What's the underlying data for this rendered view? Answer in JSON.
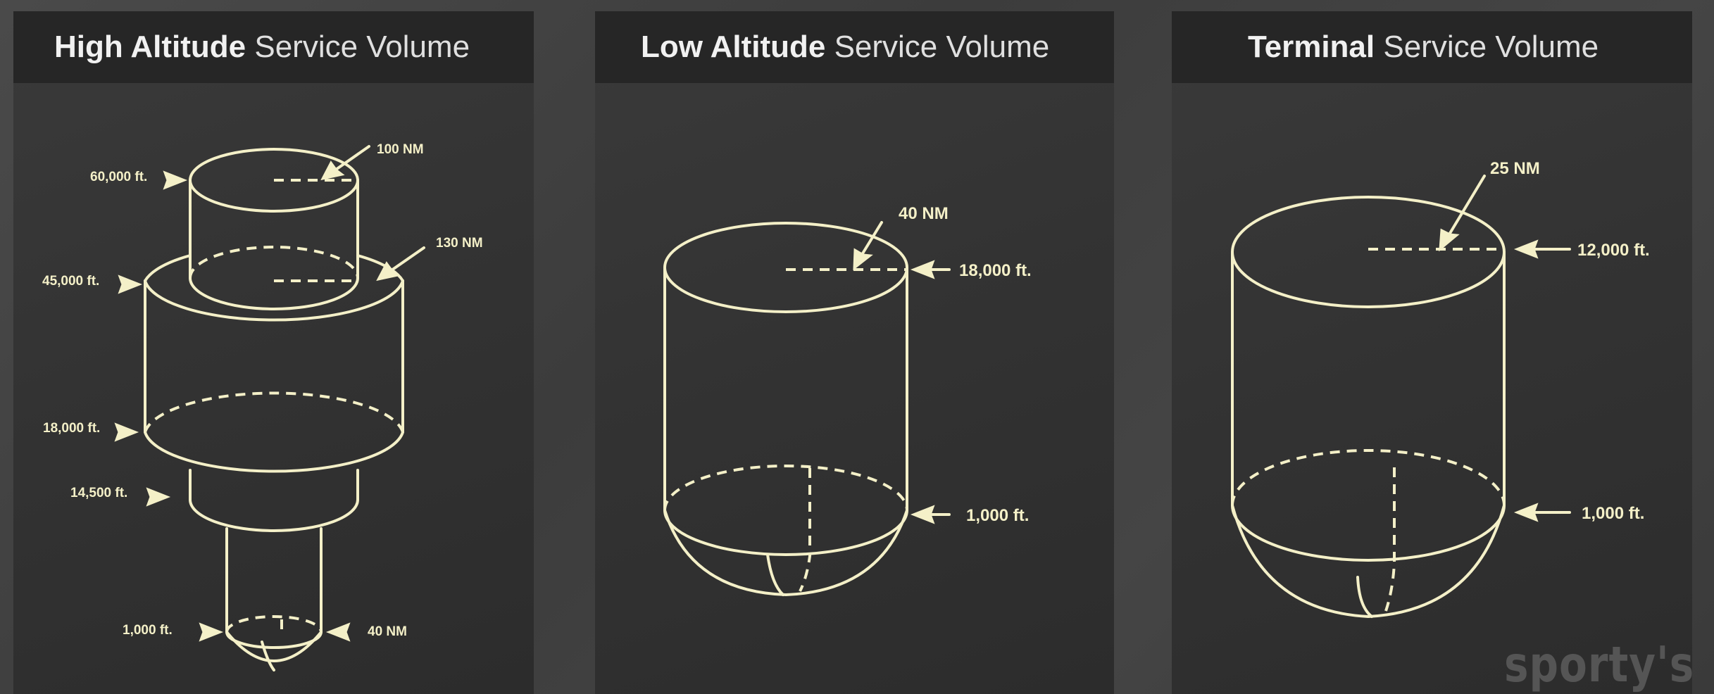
{
  "panels": {
    "high": {
      "title_bold": "High Altitude",
      "title_rest": "Service Volume",
      "labels": {
        "alt_60000": "60,000 ft.",
        "alt_45000": "45,000 ft.",
        "alt_18000": "18,000 ft.",
        "alt_14500": "14,500 ft.",
        "alt_1000": "1,000 ft.",
        "r_100": "100 NM",
        "r_130": "130 NM",
        "r_40": "40 NM"
      }
    },
    "low": {
      "title_bold": "Low Altitude",
      "title_rest": "Service Volume",
      "labels": {
        "r_40": "40 NM",
        "alt_18000": "18,000 ft.",
        "alt_1000": "1,000 ft."
      }
    },
    "terminal": {
      "title_bold": "Terminal",
      "title_rest": "Service Volume",
      "labels": {
        "r_25": "25 NM",
        "alt_12000": "12,000 ft.",
        "alt_1000": "1,000 ft."
      }
    }
  },
  "watermark": "sporty's",
  "colors": {
    "line": "#f4f0c8",
    "panel": "#333333",
    "header": "#262626",
    "background": "#444444"
  }
}
